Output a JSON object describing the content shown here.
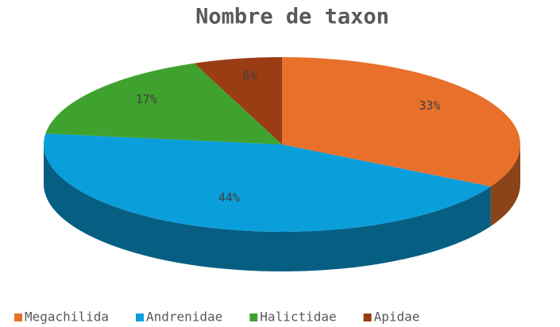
{
  "chart_data": {
    "type": "pie",
    "title": "Nombre de taxon",
    "categories": [
      "Megachilida",
      "Andrenidae",
      "Halictidae",
      "Apidae"
    ],
    "values": [
      33,
      44,
      17,
      6
    ],
    "value_labels": [
      "33%",
      "44%",
      "17%",
      "6%"
    ],
    "colors": [
      "#e8702a",
      "#0a9fdb",
      "#3fa22f",
      "#9a3c14"
    ],
    "legend": "bottom"
  }
}
